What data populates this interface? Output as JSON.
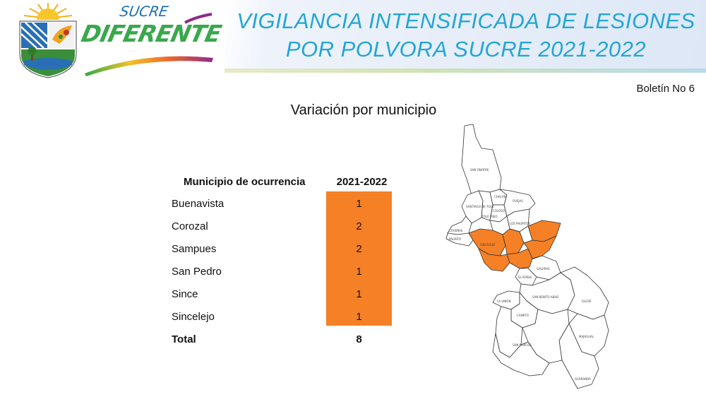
{
  "header": {
    "title_line1": "VIGILANCIA INTENSIFICADA DE LESIONES",
    "title_line2": "POR POLVORA SUCRE 2021-2022",
    "brand_top": "SUCRE",
    "brand_bottom": "DIFERENTE"
  },
  "boletin": "Boletín No 6",
  "subtitle": "Variación por municipio",
  "table": {
    "header_municipio": "Municipio de ocurrencia",
    "header_year": "2021-2022",
    "highlight_color": "#f58025",
    "rows": [
      {
        "municipio": "Buenavista",
        "value": "1"
      },
      {
        "municipio": "Corozal",
        "value": "2"
      },
      {
        "municipio": "Sampues",
        "value": "2"
      },
      {
        "municipio": "San Pedro",
        "value": "1"
      },
      {
        "municipio": "Since",
        "value": "1"
      },
      {
        "municipio": "Sincelejo",
        "value": "1"
      }
    ],
    "total_label": "Total",
    "total_value": "8"
  },
  "map": {
    "labels": {
      "san_onofre": "SAN ONOFRE",
      "chalan": "CHALÁN",
      "coloso": "COLOSO",
      "ovejas": "OVEJAS",
      "tolu": "SANTIAGO DE TOLÚ",
      "tolu_viejo": "TOLÚ VIEJO",
      "coveñas": "COVEÑAS",
      "palmito": "PALMITO",
      "los_palmitos": "LOS PALMITOS",
      "sincelejo": "SINCELEJO",
      "galeras": "GALERAS",
      "el_roble": "EL ROBLE",
      "san_benito": "SAN BENITO ABAD",
      "la_union": "LA UNIÓN",
      "caimito": "CAIMITO",
      "sucre": "SUCRE",
      "san_marcos": "SAN MARCOS",
      "majagual": "MAJAGUAL",
      "guaranda": "GUARANDA"
    },
    "highlight_color": "#f58025"
  }
}
